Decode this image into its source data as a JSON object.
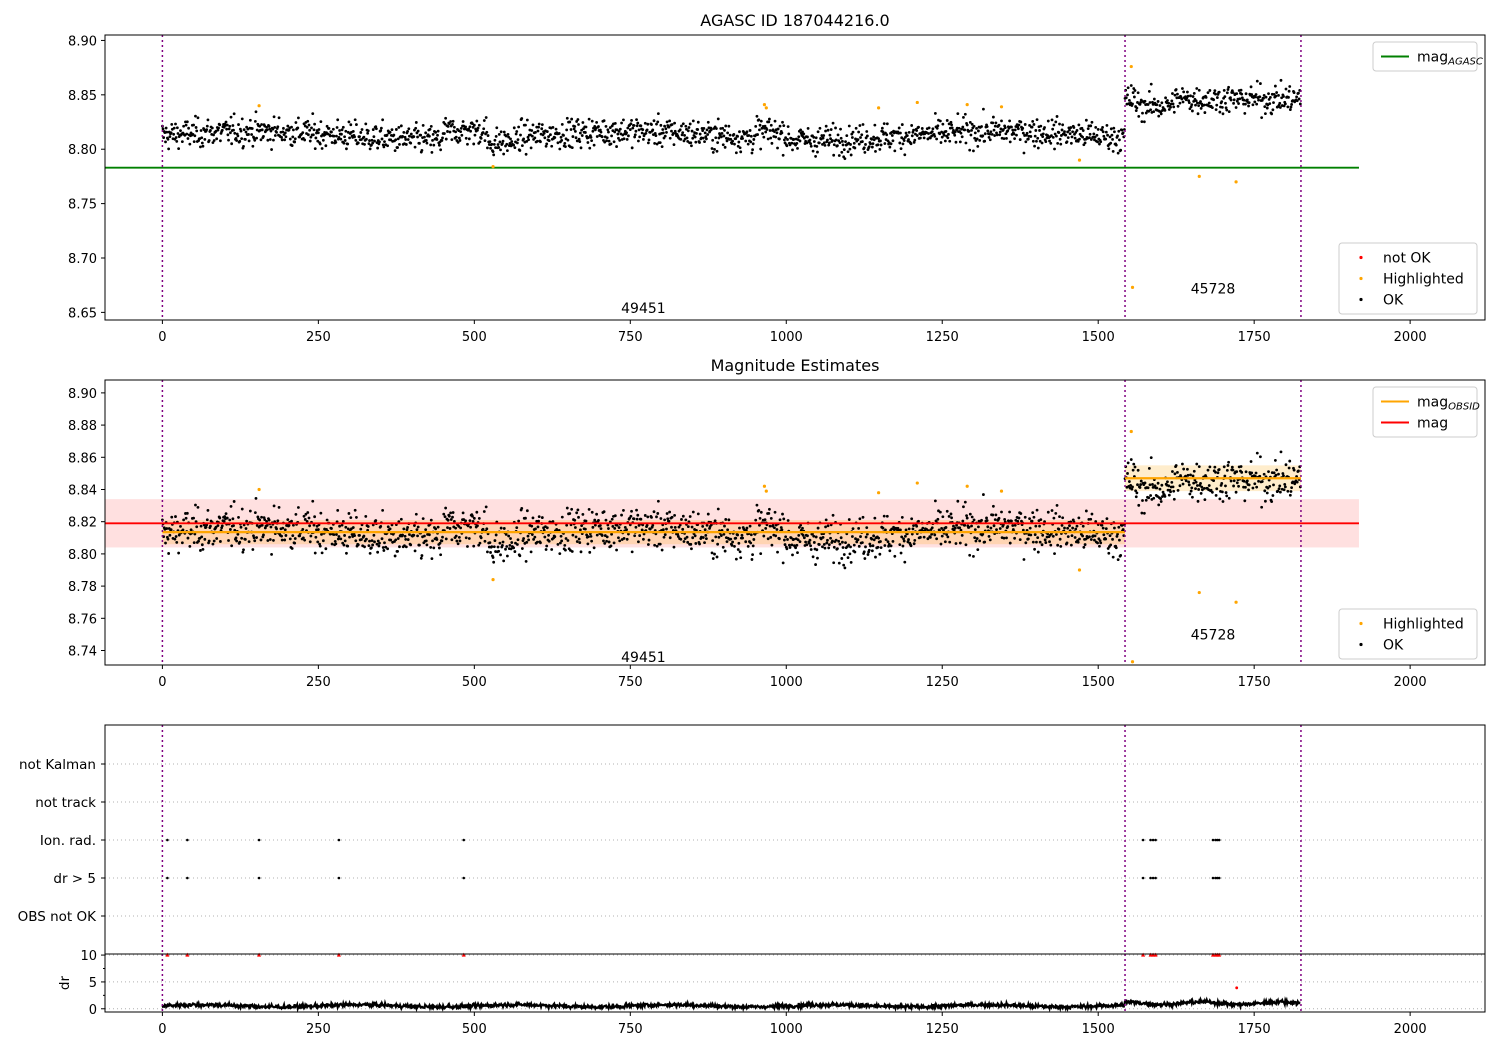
{
  "chart_data": [
    {
      "type": "scatter",
      "title": "AGASC ID 187044216.0",
      "xlabel": "",
      "ylabel": "",
      "xlim": [
        -92,
        2120
      ],
      "ylim": [
        8.643,
        8.905
      ],
      "xticks": [
        0,
        250,
        500,
        750,
        1000,
        1250,
        1500,
        1750,
        2000
      ],
      "yticks": [
        8.65,
        8.7,
        8.75,
        8.8,
        8.85,
        8.9
      ],
      "ytick_decimals": 2,
      "grid": false,
      "obs_boundaries": [
        0,
        1543,
        1825
      ],
      "obs_labels": [
        {
          "text": "49451",
          "x": 771,
          "y": 8.654
        },
        {
          "text": "45728",
          "x": 1684,
          "y": 8.672
        }
      ],
      "agasc_mag": 8.783,
      "agasc_mag_xrange": [
        -92,
        1918
      ],
      "legends": [
        {
          "placement": "top-right",
          "entries": [
            {
              "kind": "line",
              "color": "#008000",
              "label": "mag",
              "sub": "AGASC"
            }
          ]
        },
        {
          "placement": "bottom-right",
          "entries": [
            {
              "kind": "dot",
              "color": "#ff0000",
              "label": "not OK",
              "sub": ""
            },
            {
              "kind": "dot",
              "color": "#ffa500",
              "label": "Highlighted",
              "sub": ""
            },
            {
              "kind": "dot",
              "color": "#000000",
              "label": "OK",
              "sub": ""
            }
          ]
        }
      ],
      "series": [
        {
          "name": "OK",
          "color": "#000000",
          "description": "≈1825 points, mean ≈8.813 (±0.008) for x<1543 and ≈8.846 (±0.008) for 1543≤x≤1825"
        },
        {
          "name": "Highlighted",
          "color": "#ffa500",
          "points": [
            [
              155,
              8.84
            ],
            [
              530,
              8.784
            ],
            [
              965,
              8.841
            ],
            [
              968,
              8.838
            ],
            [
              1148,
              8.838
            ],
            [
              1210,
              8.843
            ],
            [
              1290,
              8.841
            ],
            [
              1345,
              8.839
            ],
            [
              1470,
              8.79
            ],
            [
              1553,
              8.876
            ],
            [
              1555,
              8.673
            ],
            [
              1662,
              8.775
            ],
            [
              1721,
              8.77
            ]
          ]
        },
        {
          "name": "not OK",
          "color": "#ff0000",
          "points": []
        }
      ]
    },
    {
      "type": "scatter",
      "title": "Magnitude Estimates",
      "xlabel": "",
      "ylabel": "",
      "xlim": [
        -92,
        2120
      ],
      "ylim": [
        8.731,
        8.908
      ],
      "xticks": [
        0,
        250,
        500,
        750,
        1000,
        1250,
        1500,
        1750,
        2000
      ],
      "yticks": [
        8.74,
        8.76,
        8.78,
        8.8,
        8.82,
        8.84,
        8.86,
        8.88,
        8.9
      ],
      "ytick_decimals": 2,
      "grid": false,
      "obs_boundaries": [
        0,
        1543,
        1825
      ],
      "obs_labels": [
        {
          "text": "49451",
          "x": 771,
          "y": 8.736
        },
        {
          "text": "45728",
          "x": 1684,
          "y": 8.75
        }
      ],
      "mag": {
        "value": 8.819,
        "low": 8.804,
        "high": 8.834,
        "xrange": [
          -92,
          1918
        ]
      },
      "mag_obsid": [
        {
          "xrange": [
            0,
            1543
          ],
          "value": 8.8135,
          "low": 8.806,
          "high": 8.821
        },
        {
          "xrange": [
            1543,
            1825
          ],
          "value": 8.847,
          "low": 8.839,
          "high": 8.855
        }
      ],
      "legends": [
        {
          "placement": "top-right",
          "entries": [
            {
              "kind": "line",
              "color": "#ffa500",
              "label": "mag",
              "sub": "OBSID"
            },
            {
              "kind": "line",
              "color": "#ff0000",
              "label": "mag",
              "sub": ""
            }
          ]
        },
        {
          "placement": "bottom-right",
          "entries": [
            {
              "kind": "dot",
              "color": "#ffa500",
              "label": "Highlighted",
              "sub": ""
            },
            {
              "kind": "dot",
              "color": "#000000",
              "label": "OK",
              "sub": ""
            }
          ]
        }
      ],
      "series": [
        {
          "name": "OK",
          "color": "#000000",
          "description": "same photometry points as the top panel"
        },
        {
          "name": "Highlighted",
          "color": "#ffa500",
          "points": [
            [
              155,
              8.84
            ],
            [
              530,
              8.784
            ],
            [
              965,
              8.842
            ],
            [
              968,
              8.839
            ],
            [
              1148,
              8.838
            ],
            [
              1210,
              8.844
            ],
            [
              1290,
              8.842
            ],
            [
              1345,
              8.839
            ],
            [
              1470,
              8.79
            ],
            [
              1553,
              8.876
            ],
            [
              1555,
              8.733
            ],
            [
              1662,
              8.776
            ],
            [
              1721,
              8.77
            ]
          ]
        }
      ]
    },
    {
      "type": "scatter",
      "title": "",
      "xlabel": "",
      "ylabel": "",
      "xlim": [
        -92,
        2120
      ],
      "categories": [
        "not Kalman",
        "not track",
        "Ion. rad.",
        "dr > 5",
        "OBS not OK"
      ],
      "grid": true,
      "obs_boundaries": [
        0,
        1543,
        1825
      ],
      "flagged_points": {
        "Ion. rad.": [
          8,
          40,
          155,
          283,
          483,
          1572,
          1584,
          1588,
          1592,
          1684,
          1688,
          1691,
          1694
        ],
        "dr > 5": [
          8,
          40,
          155,
          283,
          483,
          1572,
          1584,
          1588,
          1592,
          1684,
          1688,
          1691,
          1694
        ]
      }
    },
    {
      "type": "line",
      "title": "",
      "xlabel": "",
      "ylabel": "dr",
      "xlim": [
        -92,
        2120
      ],
      "ylim": [
        -0.6,
        10.2
      ],
      "xticks": [
        0,
        250,
        500,
        750,
        1000,
        1250,
        1500,
        1750,
        2000
      ],
      "yticks": [
        0,
        5,
        10
      ],
      "ytick_decimals": 0,
      "grid": true,
      "obs_boundaries": [
        0,
        1543,
        1825
      ],
      "dr_series": {
        "color": "#000000",
        "description": "≈1825 points, dr ≈0.3–1.2 for x<1543, ≈0.8–1.8 for 1543≤x≤1825"
      },
      "clipped_points": {
        "color": "#ff0000",
        "y": 10,
        "x": [
          8,
          40,
          155,
          283,
          483,
          1572,
          1584,
          1588,
          1592,
          1684,
          1688,
          1691,
          1694
        ]
      },
      "outlier_points": {
        "color": "#ff0000",
        "points": [
          [
            1722,
            3.9
          ]
        ]
      }
    }
  ]
}
